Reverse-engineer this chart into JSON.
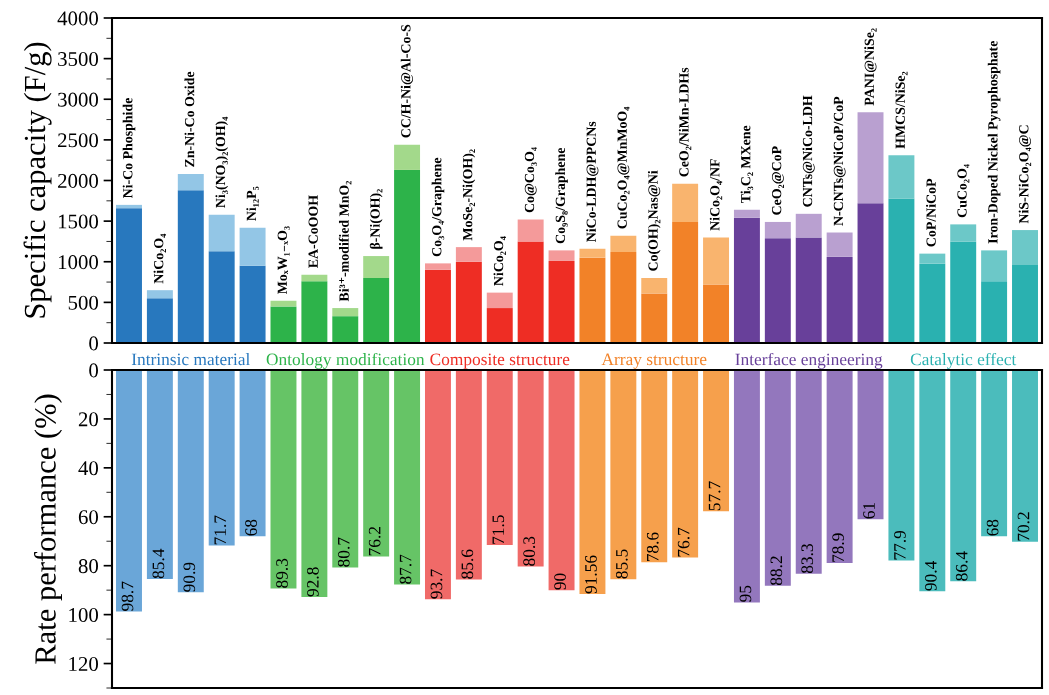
{
  "chart_data": [
    {
      "type": "bar",
      "stacked": true,
      "ylabel": "Specific capacity (F/g)",
      "categories": [
        "Ni-Co Phosphide",
        "NiCo₂O₄",
        "Zn-Ni-Co Oxide",
        "Ni₃(NO₃)₂(OH)₄",
        "Ni₁₂P₅",
        "MoₓW₁₋ₓO₃",
        "EA-CoOOH",
        "Bi³⁺-modified MnO₂",
        "β-Ni(OH)₂",
        "CC/H-Ni@Al-Co-S",
        "Co₃O₄/Graphene",
        "MoSe₂-Ni(OH)₂",
        "NiCo₂O₄",
        "Co@Co₃O₄",
        "Co₉S₈/Graphene",
        "NiCo-LDH@PPCNs",
        "CuCo₂O₄@MnMoO₄",
        "Co(OH)₂Nas@Ni",
        "CeO₂/NiMn-LDHs",
        "NiCo₂O₄/NF",
        "Ti₃C₂ MXene",
        "CeO₂@CoP",
        "CNTs@NiCo-LDH",
        "N-CNTs@NiCoP/CoP",
        "PANI@NiSe₂",
        "HMCS/NiSe₂",
        "CoP/NiCoP",
        "CuCo₂O₄",
        "Iron-Doped Nickel Pyrophosphate",
        "NiS-NiCo₂O₄@C"
      ],
      "series": [
        {
          "colors": [
            "#2878be",
            "#2878be",
            "#2878be",
            "#2878be",
            "#2878be",
            "#2db34a",
            "#2db34a",
            "#2db34a",
            "#2db34a",
            "#2db34a",
            "#ee2d24",
            "#ee2d24",
            "#ee2d24",
            "#ee2d24",
            "#ee2d24",
            "#f28228",
            "#f28228",
            "#f28228",
            "#f28228",
            "#f28228",
            "#68409a",
            "#68409a",
            "#68409a",
            "#68409a",
            "#68409a",
            "#2ab1b0",
            "#2ab1b0",
            "#2ab1b0",
            "#2ab1b0",
            "#2ab1b0"
          ],
          "values": [
            1660,
            550,
            1880,
            1130,
            950,
            450,
            760,
            330,
            800,
            2130,
            900,
            1000,
            430,
            1250,
            1010,
            1050,
            1120,
            610,
            1490,
            720,
            1540,
            1290,
            1300,
            1060,
            1720,
            1780,
            980,
            1250,
            760,
            960
          ]
        },
        {
          "colors": [
            "#93c6e6",
            "#93c6e6",
            "#93c6e6",
            "#93c6e6",
            "#93c6e6",
            "#a3d98b",
            "#a3d98b",
            "#a3d98b",
            "#a3d98b",
            "#a3d98b",
            "#f49a9a",
            "#f49a9a",
            "#f49a9a",
            "#f49a9a",
            "#f49a9a",
            "#f9b46e",
            "#f9b46e",
            "#f9b46e",
            "#f9b46e",
            "#f9b46e",
            "#b9a0d0",
            "#b9a0d0",
            "#b9a0d0",
            "#b9a0d0",
            "#b9a0d0",
            "#6cc8c8",
            "#6cc8c8",
            "#6cc8c8",
            "#6cc8c8",
            "#6cc8c8"
          ],
          "values": [
            40,
            100,
            200,
            450,
            470,
            70,
            80,
            100,
            270,
            310,
            80,
            180,
            190,
            270,
            130,
            110,
            200,
            190,
            470,
            580,
            100,
            200,
            290,
            300,
            1120,
            530,
            120,
            210,
            380,
            430
          ]
        }
      ],
      "ylim": [
        0,
        4000
      ],
      "yticks": [
        0,
        500,
        1000,
        1500,
        2000,
        2500,
        3000,
        3500,
        4000
      ],
      "grid": false,
      "legend": false,
      "annotations": [
        "Intrinsic material",
        "Ontology modification",
        "Composite structure",
        "Array structure",
        "Interface engineering",
        "Catalytic effect"
      ]
    },
    {
      "type": "bar",
      "ylabel": "Rate performance (%)",
      "data_labels": true,
      "categories": [
        null,
        null,
        null,
        null,
        null,
        null,
        null,
        null,
        null,
        null,
        null,
        null,
        null,
        null,
        null,
        null,
        null,
        null,
        null,
        null,
        null,
        null,
        null,
        null,
        null,
        null,
        null,
        null,
        null,
        null
      ],
      "colors": [
        "#6aa6d8",
        "#6aa6d8",
        "#6aa6d8",
        "#6aa6d8",
        "#6aa6d8",
        "#66c466",
        "#66c466",
        "#66c466",
        "#66c466",
        "#66c466",
        "#f06a68",
        "#f06a68",
        "#f06a68",
        "#f06a68",
        "#f06a68",
        "#f6a04c",
        "#f6a04c",
        "#f6a04c",
        "#f6a04c",
        "#f6a04c",
        "#9377bd",
        "#9377bd",
        "#9377bd",
        "#9377bd",
        "#9377bd",
        "#4bbcbc",
        "#4bbcbc",
        "#4bbcbc",
        "#4bbcbc",
        "#4bbcbc"
      ],
      "values": [
        98.7,
        85.4,
        90.9,
        71.7,
        68,
        89.3,
        92.8,
        80.7,
        76.2,
        87.7,
        93.7,
        85.6,
        71.5,
        80.3,
        90,
        91.56,
        85.5,
        78.6,
        76.7,
        57.7,
        95,
        88.2,
        83.3,
        78.9,
        61,
        77.9,
        90.4,
        86.4,
        68,
        70.2
      ],
      "ylim": [
        130,
        0
      ],
      "yticks": [
        0,
        20,
        40,
        60,
        80,
        100,
        120
      ],
      "grid": false,
      "legend": false
    }
  ]
}
